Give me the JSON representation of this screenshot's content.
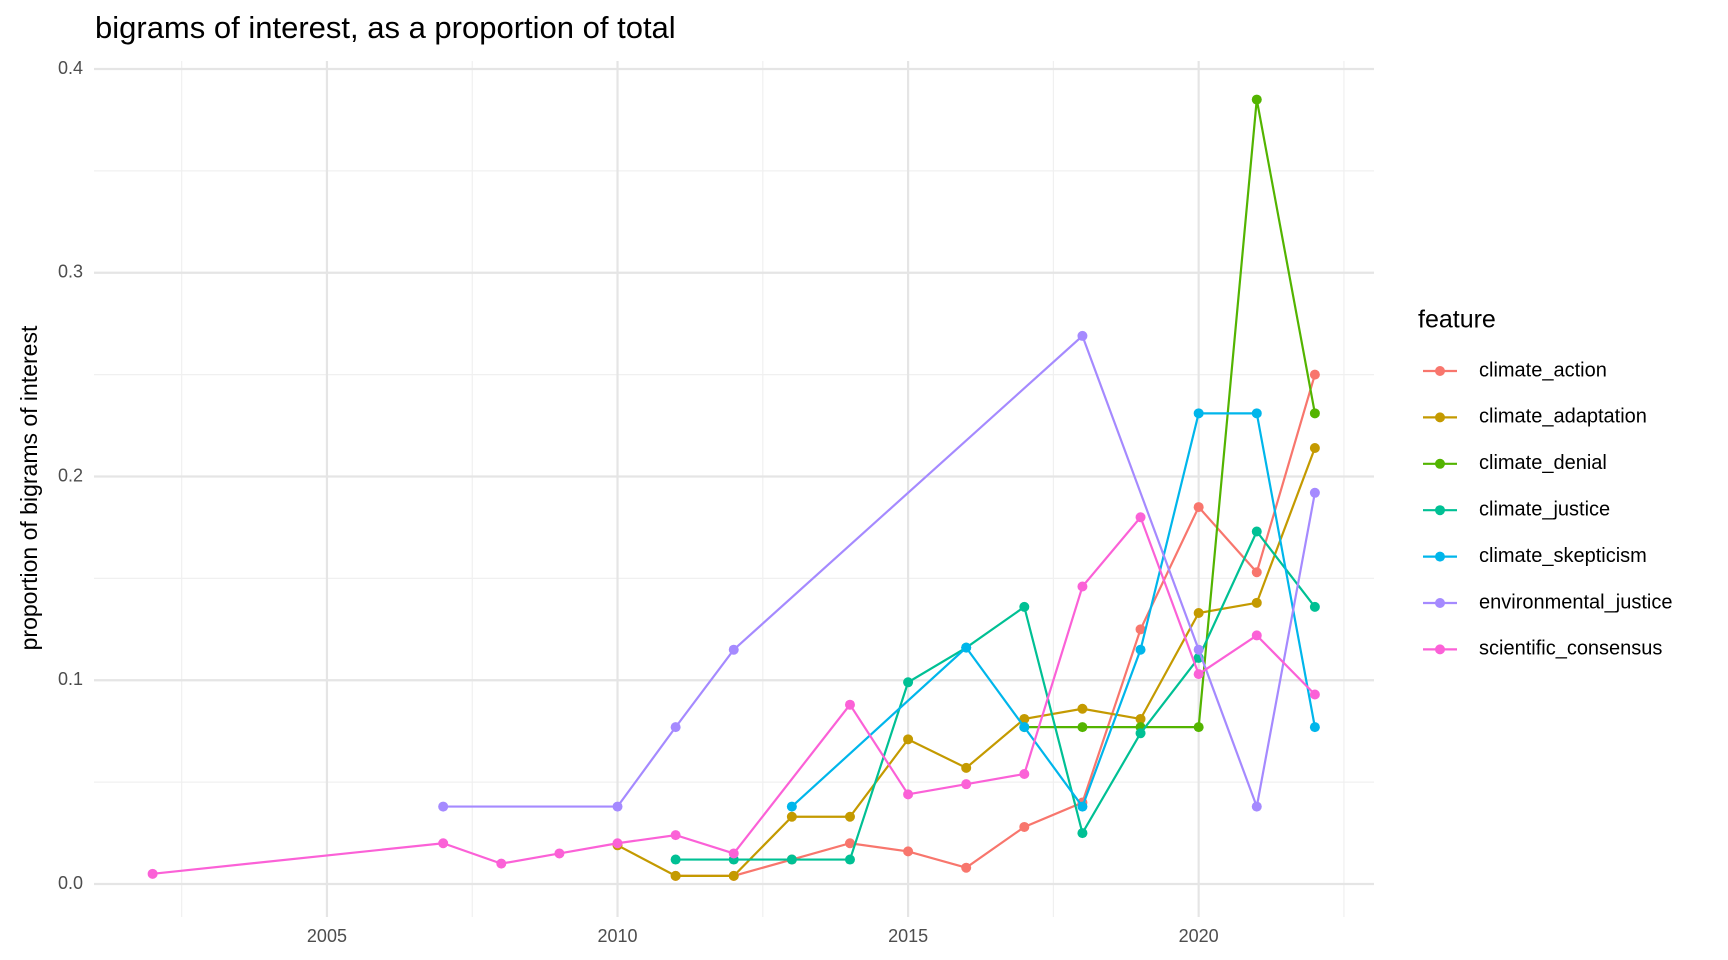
{
  "chart_data": {
    "type": "line",
    "title": "bigrams of interest, as a proportion of total",
    "ylabel": "proportion of bigrams of interest",
    "legend_title": "feature",
    "legend": "right",
    "grid": true,
    "xlim": [
      2001,
      2023
    ],
    "xticks": [
      2005,
      2010,
      2015,
      2020
    ],
    "ylim": [
      0,
      0.4
    ],
    "yticks": [
      {
        "value": 0,
        "label": "0.0"
      },
      0.1,
      0.2,
      0.3,
      0.4
    ],
    "series": [
      {
        "name": "climate_action",
        "color": "#F8766D",
        "x": [
          2011,
          2012,
          2013,
          2014,
          2015,
          2016,
          2017,
          2018,
          2019,
          2020,
          2021,
          2022
        ],
        "values": [
          0.004,
          0.004,
          0.012,
          0.02,
          0.016,
          0.008,
          0.028,
          0.04,
          0.125,
          0.185,
          0.153,
          0.25
        ]
      },
      {
        "name": "climate_adaptation",
        "color": "#C49A00",
        "x": [
          2010,
          2011,
          2012,
          2013,
          2014,
          2015,
          2016,
          2017,
          2018,
          2019,
          2020,
          2021,
          2022
        ],
        "values": [
          0.019,
          0.004,
          0.004,
          0.033,
          0.033,
          0.071,
          0.057,
          0.081,
          0.086,
          0.081,
          0.133,
          0.138,
          0.214
        ]
      },
      {
        "name": "climate_denial",
        "color": "#53B400",
        "x": [
          2017,
          2018,
          2019,
          2020,
          2021,
          2022
        ],
        "values": [
          0.077,
          0.077,
          0.077,
          0.077,
          0.385,
          0.231
        ]
      },
      {
        "name": "climate_justice",
        "color": "#00C094",
        "x": [
          2011,
          2012,
          2013,
          2014,
          2015,
          2016,
          2017,
          2018,
          2019,
          2020,
          2021,
          2022
        ],
        "values": [
          0.012,
          0.012,
          0.012,
          0.012,
          0.099,
          0.116,
          0.136,
          0.025,
          0.074,
          0.111,
          0.173,
          0.136
        ]
      },
      {
        "name": "climate_skepticism",
        "color": "#00B6EB",
        "x": [
          2013,
          2016,
          2017,
          2018,
          2019,
          2020,
          2021,
          2022
        ],
        "values": [
          0.038,
          0.116,
          0.077,
          0.038,
          0.115,
          0.231,
          0.231,
          0.077
        ]
      },
      {
        "name": "environmental_justice",
        "color": "#A58AFF",
        "x": [
          2007,
          2010,
          2011,
          2012,
          2018,
          2020,
          2021,
          2022
        ],
        "values": [
          0.038,
          0.038,
          0.077,
          0.115,
          0.269,
          0.115,
          0.038,
          0.192
        ]
      },
      {
        "name": "scientific_consensus",
        "color": "#FB61D7",
        "x": [
          2002,
          2007,
          2008,
          2009,
          2010,
          2011,
          2012,
          2014,
          2015,
          2016,
          2017,
          2018,
          2019,
          2020,
          2021,
          2022
        ],
        "values": [
          0.005,
          0.02,
          0.01,
          0.015,
          0.02,
          0.024,
          0.015,
          0.088,
          0.044,
          0.049,
          0.054,
          0.146,
          0.18,
          0.103,
          0.122,
          0.093
        ]
      }
    ]
  }
}
